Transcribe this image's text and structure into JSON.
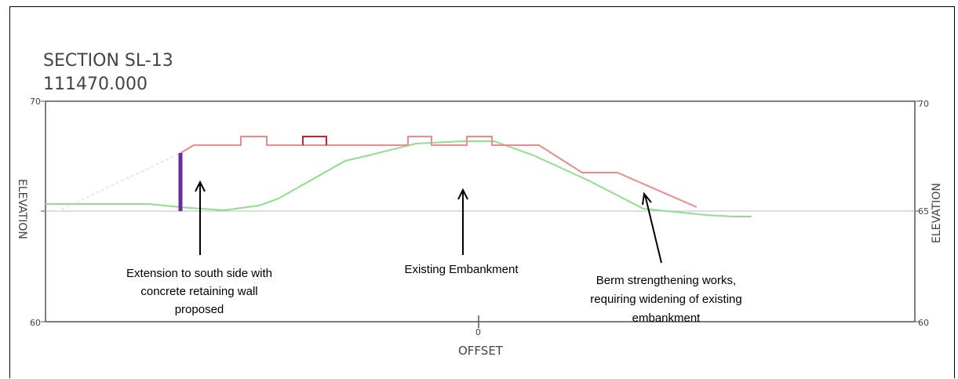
{
  "section": {
    "title": "SECTION SL-13",
    "chainage": "111470.000"
  },
  "axes": {
    "left_label": "ELEVATION",
    "right_label": "ELEVATION",
    "x_label": "OFFSET",
    "x_tick": "0",
    "y_ticks": [
      "70",
      "65",
      "60"
    ]
  },
  "annotations": {
    "extension": [
      "Extension to south side with",
      "concrete retaining wall",
      "proposed"
    ],
    "existing": [
      "Existing Embankment"
    ],
    "berm": [
      "Berm strengthening works,",
      "requiring widening of existing",
      "embankment"
    ]
  },
  "colors": {
    "proposed": "#f08a8a",
    "existing_ground": "#8ee08a",
    "retaining_wall": "#6a2aa0",
    "grid": "#555555"
  }
}
